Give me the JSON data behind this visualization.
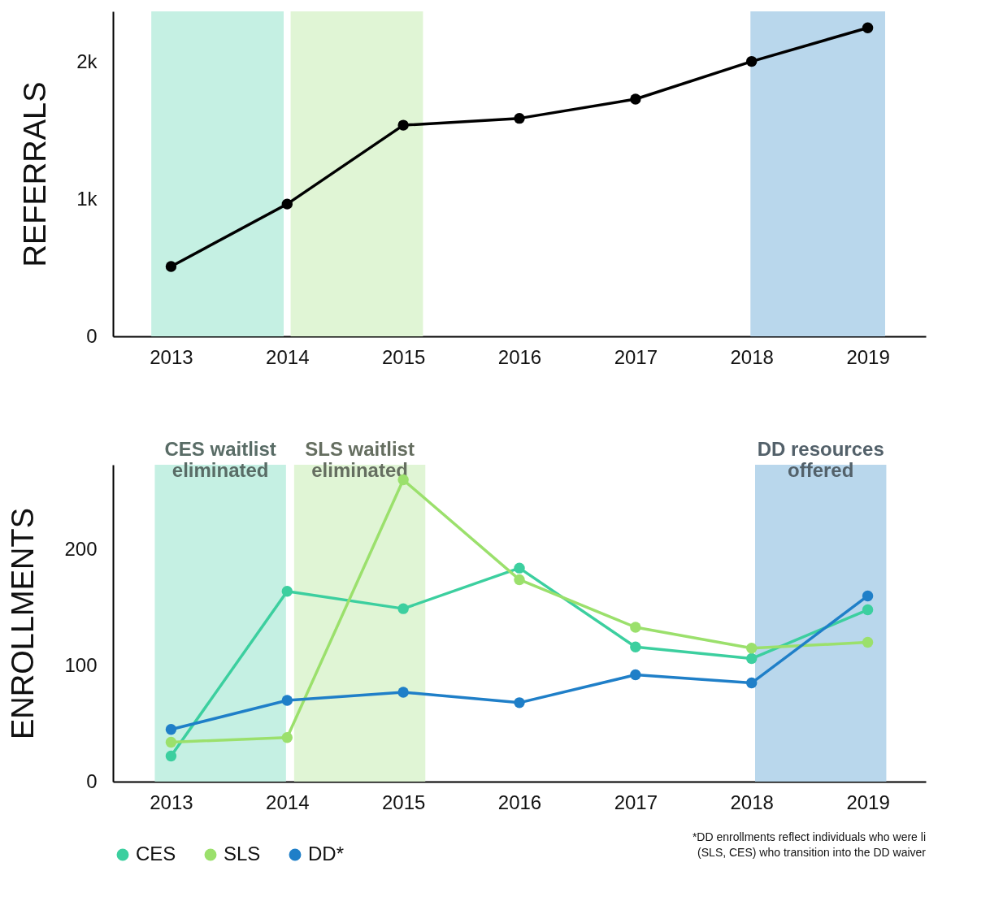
{
  "chart_data": [
    {
      "type": "line",
      "ylabel": "REFERRALS",
      "x": [
        2013,
        2014,
        2015,
        2016,
        2017,
        2018,
        2019
      ],
      "xlim": [
        2012.5,
        2019.5
      ],
      "xticks": [
        2013,
        2014,
        2015,
        2016,
        2017,
        2018,
        2019
      ],
      "ylim": [
        0,
        2370
      ],
      "yticks": [
        0,
        {
          "value": 1000,
          "label": "1k"
        },
        {
          "value": 2000,
          "label": "2k"
        }
      ],
      "grid": false,
      "marker": "circle",
      "legend": false,
      "series": [
        {
          "color": "#000000",
          "values": [
            510,
            965,
            1540,
            1590,
            1730,
            2005,
            2250
          ]
        }
      ],
      "bands": [
        {
          "axis": "x",
          "from": 2012.83,
          "to": 2013.97,
          "color": "#c5f0e3"
        },
        {
          "axis": "x",
          "from": 2014.03,
          "to": 2015.17,
          "color": "#e0f5d5"
        },
        {
          "axis": "x",
          "from": 2017.99,
          "to": 2019.15,
          "color": "#b9d7ec"
        }
      ]
    },
    {
      "type": "line",
      "ylabel": "ENROLLMENTS",
      "x": [
        2013,
        2014,
        2015,
        2016,
        2017,
        2018,
        2019
      ],
      "xlim": [
        2012.5,
        2019.5
      ],
      "xticks": [
        2013,
        2014,
        2015,
        2016,
        2017,
        2018,
        2019
      ],
      "ylim": [
        0,
        273
      ],
      "yticks": [
        0,
        100,
        200
      ],
      "grid": false,
      "marker": "circle",
      "legend": "bottom",
      "series": [
        {
          "name": "CES",
          "color": "#3ccf9f",
          "values": [
            22,
            164,
            149,
            184,
            116,
            106,
            148
          ]
        },
        {
          "name": "SLS",
          "color": "#9be06c",
          "values": [
            34,
            38,
            260,
            174,
            133,
            115,
            120
          ]
        },
        {
          "name": "DD*",
          "color": "#1f7fc8",
          "values": [
            45,
            70,
            77,
            68,
            92,
            85,
            160
          ]
        }
      ],
      "bands": [
        {
          "axis": "x",
          "from": 2012.86,
          "to": 2013.99,
          "color": "#c5f0e3",
          "label": "CES waitlist eliminated"
        },
        {
          "axis": "x",
          "from": 2014.06,
          "to": 2015.19,
          "color": "#e0f5d5",
          "label": "SLS waitlist eliminated"
        },
        {
          "axis": "x",
          "from": 2018.03,
          "to": 2019.16,
          "color": "#b9d7ec",
          "label": "DD resources offered"
        }
      ],
      "annotations": [
        "*DD enrollments reflect individuals who were li",
        "(SLS, CES) who transition into the DD waiver"
      ]
    }
  ]
}
